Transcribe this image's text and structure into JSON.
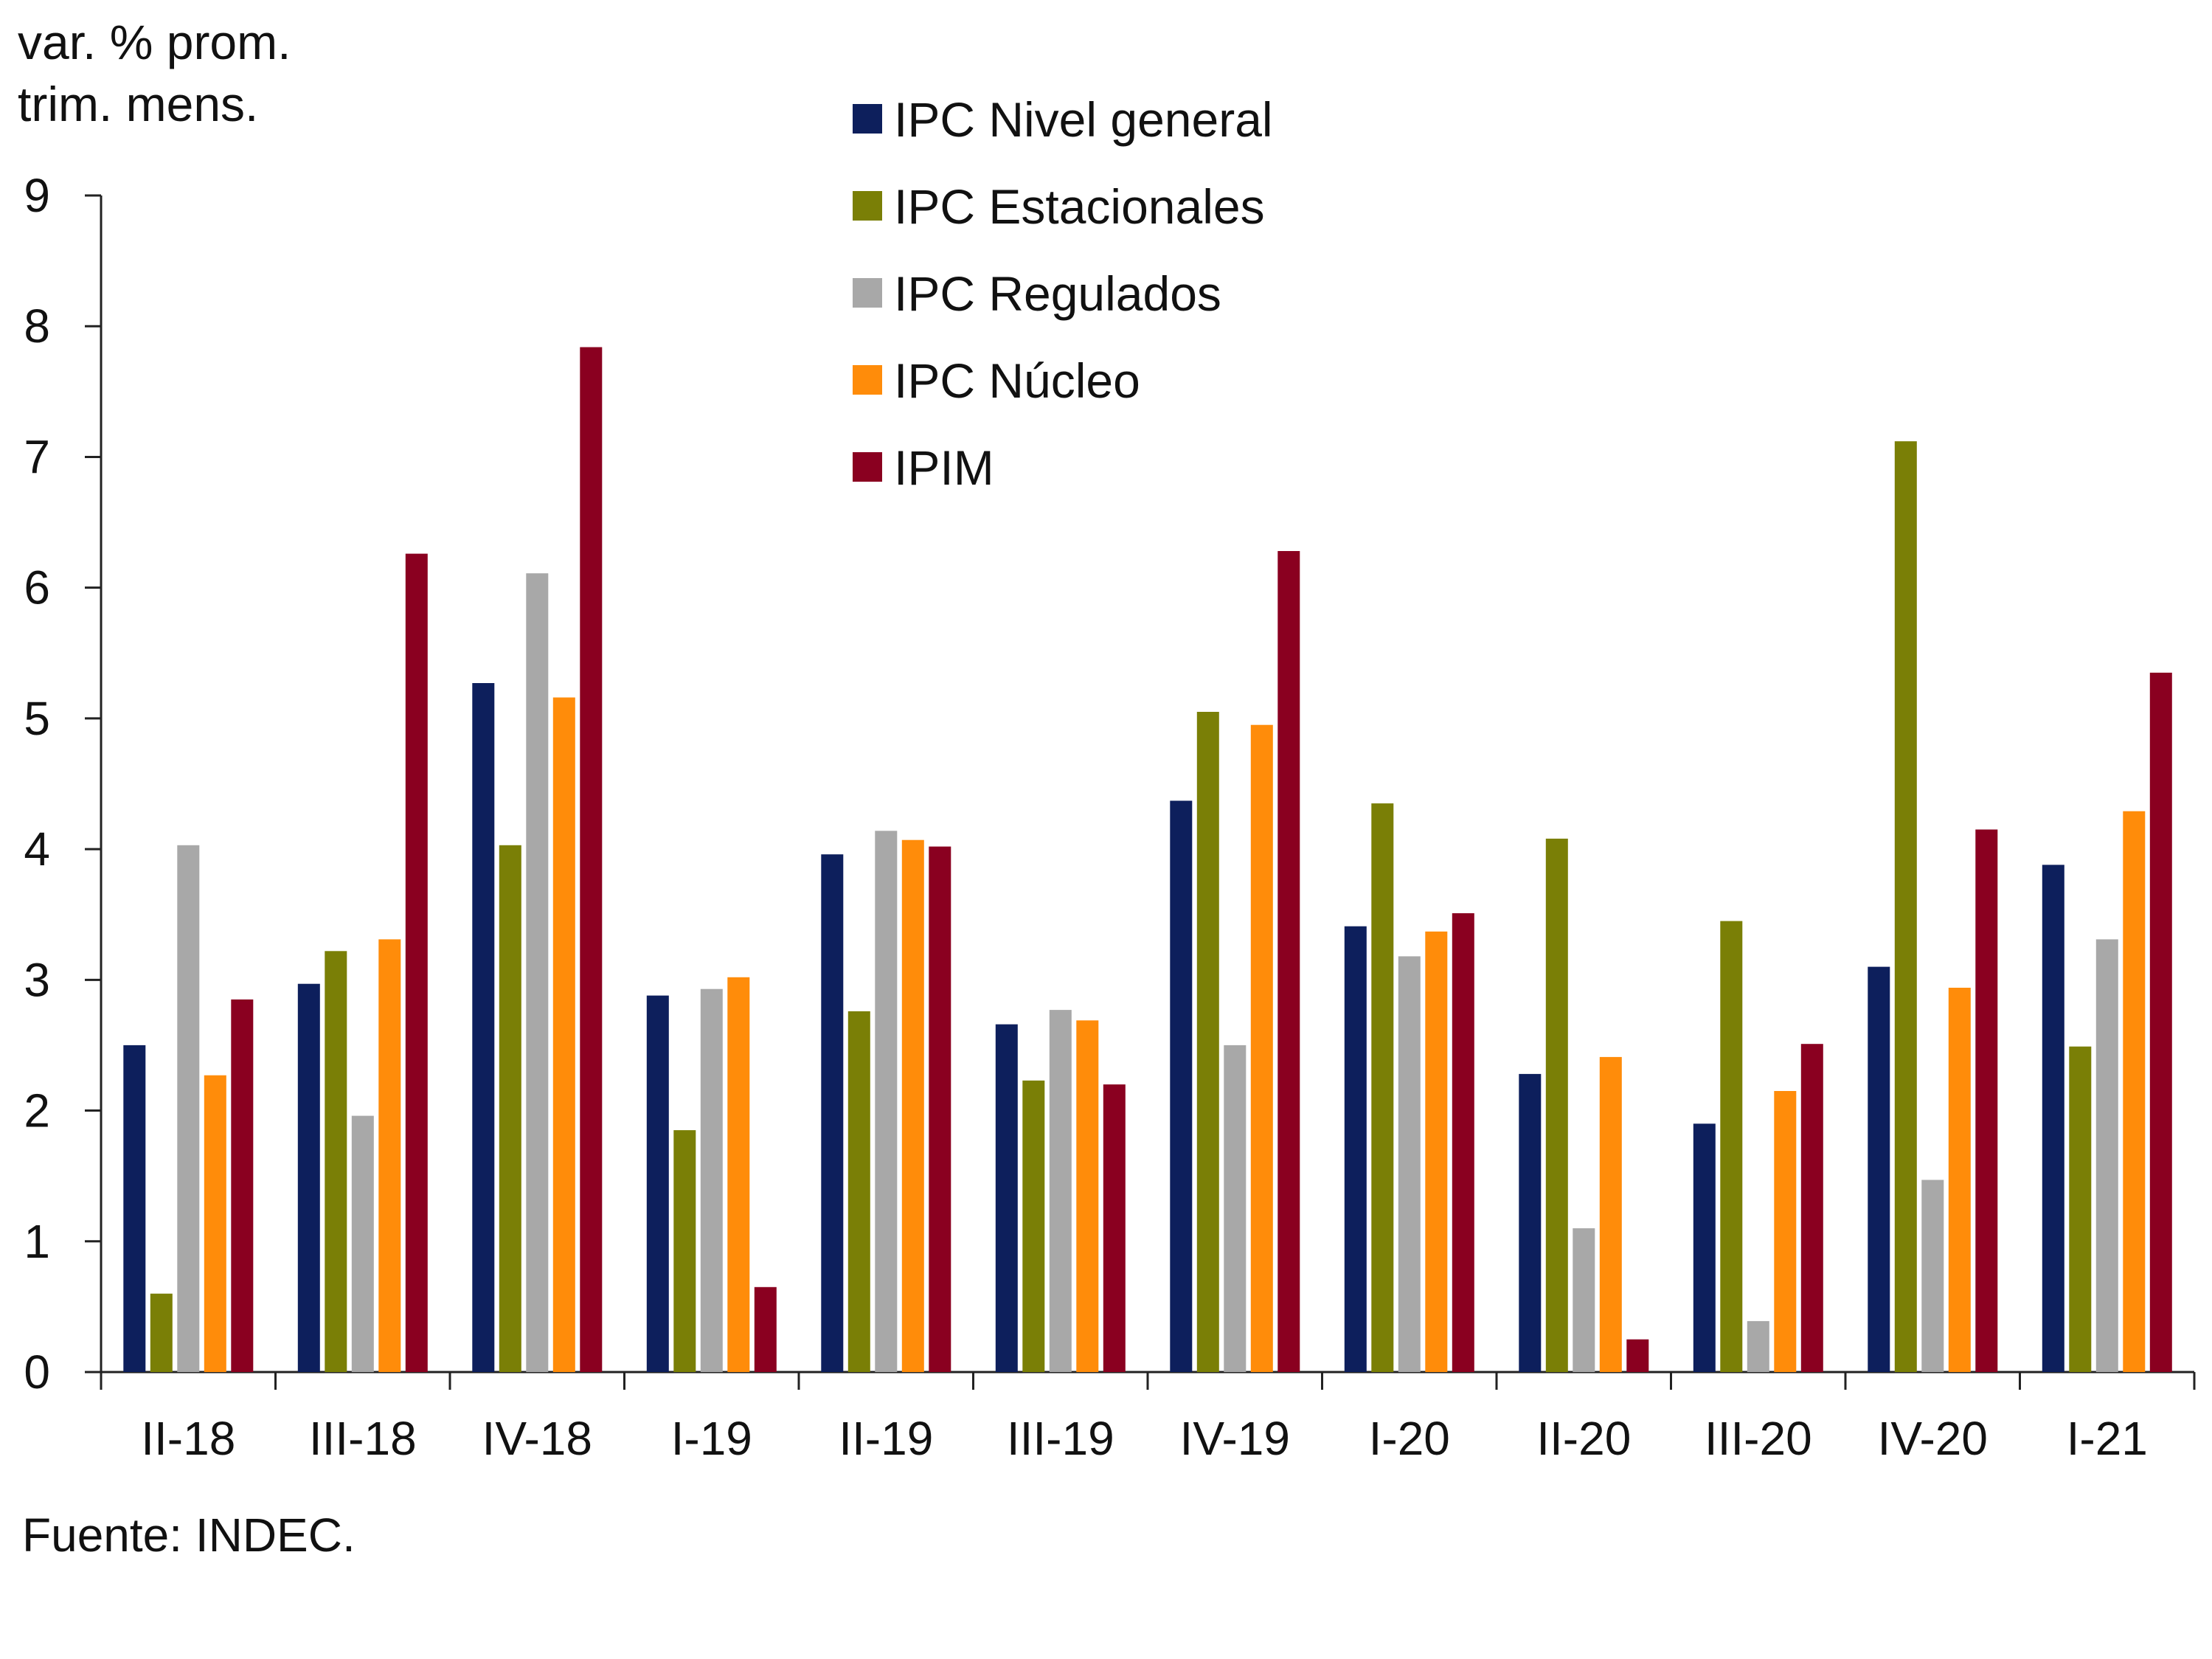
{
  "chart_data": {
    "type": "bar",
    "ylabel_lines": [
      "var. % prom.",
      "trim. mens."
    ],
    "ylim": [
      0,
      9
    ],
    "yticks": [
      0,
      1,
      2,
      3,
      4,
      5,
      6,
      7,
      8,
      9
    ],
    "categories": [
      "II-18",
      "III-18",
      "IV-18",
      "I-19",
      "II-19",
      "III-19",
      "IV-19",
      "I-20",
      "II-20",
      "III-20",
      "IV-20",
      "I-21"
    ],
    "series": [
      {
        "name": "IPC Nivel general",
        "color": "#0d1f5c",
        "values": [
          2.5,
          2.97,
          5.27,
          2.88,
          3.96,
          2.66,
          4.37,
          3.41,
          2.28,
          1.9,
          3.1,
          3.88
        ]
      },
      {
        "name": "IPC Estacionales",
        "color": "#7a7f06",
        "values": [
          0.6,
          3.22,
          4.03,
          1.85,
          2.76,
          2.23,
          5.05,
          4.35,
          4.08,
          3.45,
          7.12,
          2.49
        ]
      },
      {
        "name": "IPC Regulados",
        "color": "#a8a8a8",
        "values": [
          4.03,
          1.96,
          6.11,
          2.93,
          4.14,
          2.77,
          2.5,
          3.18,
          1.1,
          0.39,
          1.47,
          3.31
        ]
      },
      {
        "name": "IPC Núcleo",
        "color": "#ff8c0a",
        "values": [
          2.27,
          3.31,
          5.16,
          3.02,
          4.07,
          2.69,
          4.95,
          3.37,
          2.41,
          2.15,
          2.94,
          4.29
        ]
      },
      {
        "name": "IPIM",
        "color": "#8a0020",
        "values": [
          2.85,
          6.26,
          7.84,
          0.65,
          4.02,
          2.2,
          6.28,
          3.51,
          0.25,
          2.51,
          4.15,
          5.35
        ]
      }
    ],
    "legend_position": "top-center",
    "source": "Fuente: INDEC."
  }
}
